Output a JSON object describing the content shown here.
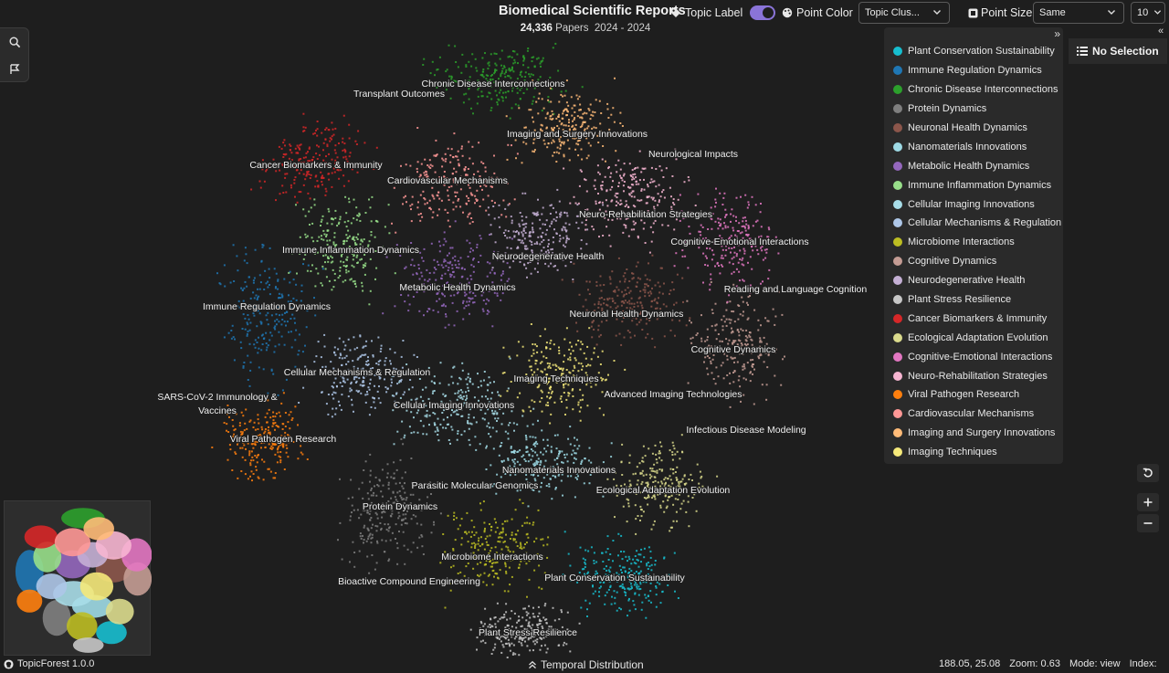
{
  "header": {
    "title": "Biomedical Scientific Reports",
    "paper_count": "24,336",
    "papers_label": "Papers",
    "year_range": "2024 - 2024"
  },
  "toolbar": {
    "topic_label": "Topic Label",
    "topic_label_on": true,
    "point_color_label": "Point Color",
    "point_color_value": "Topic Clus...",
    "point_size_label": "Point Size",
    "point_size_value": "Same",
    "top_n_value": "10"
  },
  "legend": {
    "collapse_glyph": "»",
    "items": [
      {
        "label": "Plant Conservation Sustainability",
        "color": "#17becf"
      },
      {
        "label": "Immune Regulation Dynamics",
        "color": "#1f77b4"
      },
      {
        "label": "Chronic Disease Interconnections",
        "color": "#2ca02c"
      },
      {
        "label": "Protein Dynamics",
        "color": "#7f7f7f"
      },
      {
        "label": "Neuronal Health Dynamics",
        "color": "#8c564b"
      },
      {
        "label": "Nanomaterials Innovations",
        "color": "#9edae5"
      },
      {
        "label": "Metabolic Health Dynamics",
        "color": "#9467bd"
      },
      {
        "label": "Immune Inflammation Dynamics",
        "color": "#98df8a"
      },
      {
        "label": "Cellular Imaging Innovations",
        "color": "#a8dde8"
      },
      {
        "label": "Cellular Mechanisms & Regulation",
        "color": "#aec7e8"
      },
      {
        "label": "Microbiome Interactions",
        "color": "#bcbd22"
      },
      {
        "label": "Cognitive Dynamics",
        "color": "#c49c94"
      },
      {
        "label": "Neurodegenerative Health",
        "color": "#c5b0d5"
      },
      {
        "label": "Plant Stress Resilience",
        "color": "#c7c7c7"
      },
      {
        "label": "Cancer Biomarkers & Immunity",
        "color": "#d62728"
      },
      {
        "label": "Ecological Adaptation Evolution",
        "color": "#dbdb8d"
      },
      {
        "label": "Cognitive-Emotional Interactions",
        "color": "#e377c2"
      },
      {
        "label": "Neuro-Rehabilitation Strategies",
        "color": "#f7b6d2"
      },
      {
        "label": "Viral Pathogen Research",
        "color": "#ff7f0e"
      },
      {
        "label": "Cardiovascular Mechanisms",
        "color": "#ff9896"
      },
      {
        "label": "Imaging and Surgery Innovations",
        "color": "#ffbb78"
      },
      {
        "label": "Imaging Techniques",
        "color": "#f5e97a"
      }
    ]
  },
  "map_labels": [
    "Transplant Outcomes",
    "Chronic Disease Interconnections",
    "Imaging and Surgery Innovations",
    "Neurological Impacts",
    "Cancer Biomarkers & Immunity",
    "Cardiovascular Mechanisms",
    "Neuro-Rehabilitation Strategies",
    "Cognitive-Emotional Interactions",
    "Immune Inflammation Dynamics",
    "Neurodegenerative Health",
    "Reading and Language Cognition",
    "Metabolic Health Dynamics",
    "Immune Regulation Dynamics",
    "Neuronal Health Dynamics",
    "Cognitive Dynamics",
    "Cellular Mechanisms & Regulation",
    "Imaging Techniques",
    "SARS-CoV-2 Immunology &",
    "Vaccines",
    "Advanced Imaging Technologies",
    "Cellular Imaging Innovations",
    "Infectious Disease Modeling",
    "Viral Pathogen Research",
    "Nanomaterials Innovations",
    "Parasitic Molecular Genomics",
    "Ecological Adaptation Evolution",
    "Protein Dynamics",
    "Microbiome Interactions",
    "Plant Conservation Sustainability",
    "Bioactive Compound Engineering",
    "Plant Stress Resilience"
  ],
  "selection_panel": {
    "label": "No Selection",
    "collapse_glyph": "«"
  },
  "footer": {
    "app_name": "TopicForest 1.0.0",
    "temporal_label": "Temporal Distribution",
    "coords": "188.05, 25.08",
    "zoom": "Zoom: 0.63",
    "mode": "Mode: view",
    "index": "Index:"
  }
}
